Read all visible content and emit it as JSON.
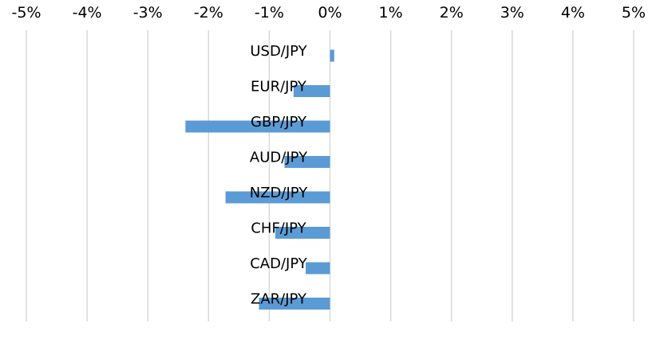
{
  "chart_data": {
    "type": "bar",
    "orientation": "horizontal",
    "x_axis_position": "top",
    "grid": true,
    "categories": [
      "USD/JPY",
      "EUR/JPY",
      "GBP/JPY",
      "AUD/JPY",
      "NZD/JPY",
      "CHF/JPY",
      "CAD/JPY",
      "ZAR/JPY"
    ],
    "values": [
      0.07,
      -0.6,
      -2.38,
      -0.75,
      -1.72,
      -0.9,
      -0.4,
      -1.17
    ],
    "xlim": [
      -5,
      5
    ],
    "ticks": [
      -5,
      -4,
      -3,
      -2,
      -1,
      0,
      1,
      2,
      3,
      4,
      5
    ],
    "tick_labels": [
      "-5%",
      "-4%",
      "-3%",
      "-2%",
      "-1%",
      "0%",
      "1%",
      "2%",
      "3%",
      "4%",
      "5%"
    ],
    "bar_color": "#5B9BD5",
    "grid_color": "#D9D9D9"
  }
}
